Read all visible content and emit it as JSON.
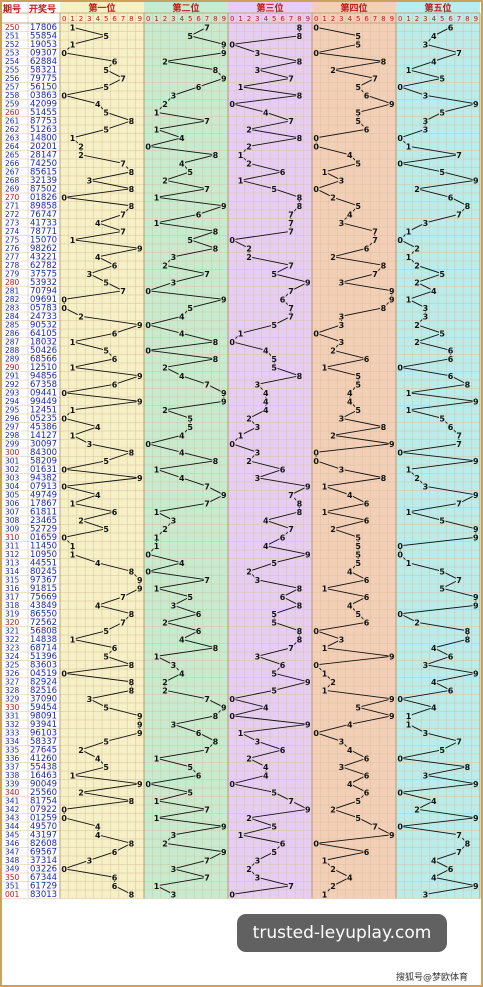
{
  "header": {
    "issue_label": "期号",
    "draw_label": "开奖号",
    "positions": [
      "第一位",
      "第二位",
      "第三位",
      "第四位",
      "第五位"
    ],
    "digit_labels": [
      "0",
      "1",
      "2",
      "3",
      "4",
      "5",
      "6",
      "7",
      "8",
      "9"
    ]
  },
  "colors": {
    "panels": [
      "#f6f0c6",
      "#c7ebcf",
      "#e6cdf3",
      "#f2cfb6",
      "#b9ecea"
    ],
    "issue_red": "#c0171c",
    "issue_blue": "#1a2aa8",
    "line": "#111111"
  },
  "chart_data": {
    "type": "line",
    "x_label": "期号",
    "series_names": [
      "第一位",
      "第二位",
      "第三位",
      "第四位",
      "第五位"
    ],
    "rows": [
      [
        "250",
        "17806"
      ],
      [
        "251",
        "55854"
      ],
      [
        "252",
        "19053"
      ],
      [
        "253",
        "09307"
      ],
      [
        "254",
        "62884"
      ],
      [
        "255",
        "58321"
      ],
      [
        "256",
        "79775"
      ],
      [
        "257",
        "56150"
      ],
      [
        "258",
        "03863"
      ],
      [
        "259",
        "42099"
      ],
      [
        "260",
        "51455"
      ],
      [
        "261",
        "87753"
      ],
      [
        "262",
        "51263"
      ],
      [
        "263",
        "14800"
      ],
      [
        "264",
        "20201"
      ],
      [
        "265",
        "28147"
      ],
      [
        "266",
        "74250"
      ],
      [
        "267",
        "85615"
      ],
      [
        "268",
        "32139"
      ],
      [
        "269",
        "87502"
      ],
      [
        "270",
        "01826"
      ],
      [
        "271",
        "89858"
      ],
      [
        "272",
        "76747"
      ],
      [
        "273",
        "41733"
      ],
      [
        "274",
        "78771"
      ],
      [
        "275",
        "15070"
      ],
      [
        "276",
        "98262"
      ],
      [
        "277",
        "43221"
      ],
      [
        "278",
        "62782"
      ],
      [
        "279",
        "37575"
      ],
      [
        "280",
        "53932"
      ],
      [
        "281",
        "70794"
      ],
      [
        "282",
        "09691"
      ],
      [
        "283",
        "05783"
      ],
      [
        "284",
        "24733"
      ],
      [
        "285",
        "90532"
      ],
      [
        "286",
        "64105"
      ],
      [
        "287",
        "18032"
      ],
      [
        "288",
        "50426"
      ],
      [
        "289",
        "68566"
      ],
      [
        "290",
        "12510"
      ],
      [
        "291",
        "94856"
      ],
      [
        "292",
        "67358"
      ],
      [
        "293",
        "09441"
      ],
      [
        "294",
        "99449"
      ],
      [
        "295",
        "12451"
      ],
      [
        "296",
        "05235"
      ],
      [
        "297",
        "45386"
      ],
      [
        "298",
        "14127"
      ],
      [
        "299",
        "30097"
      ],
      [
        "300",
        "84300"
      ],
      [
        "301",
        "58209"
      ],
      [
        "302",
        "01631"
      ],
      [
        "303",
        "94382"
      ],
      [
        "304",
        "07913"
      ],
      [
        "305",
        "49749"
      ],
      [
        "306",
        "17867"
      ],
      [
        "307",
        "61811"
      ],
      [
        "308",
        "23465"
      ],
      [
        "309",
        "52729"
      ],
      [
        "310",
        "01659"
      ],
      [
        "311",
        "11450"
      ],
      [
        "312",
        "10950"
      ],
      [
        "313",
        "44551"
      ],
      [
        "314",
        "80245"
      ],
      [
        "315",
        "97367"
      ],
      [
        "316",
        "91815"
      ],
      [
        "317",
        "75669"
      ],
      [
        "318",
        "43849"
      ],
      [
        "319",
        "86550"
      ],
      [
        "320",
        "72562"
      ],
      [
        "321",
        "56808"
      ],
      [
        "322",
        "14838"
      ],
      [
        "323",
        "68714"
      ],
      [
        "324",
        "51396"
      ],
      [
        "325",
        "83603"
      ],
      [
        "326",
        "04519"
      ],
      [
        "327",
        "82924"
      ],
      [
        "328",
        "82516"
      ],
      [
        "329",
        "37090"
      ],
      [
        "330",
        "59454"
      ],
      [
        "331",
        "98091"
      ],
      [
        "332",
        "93941"
      ],
      [
        "333",
        "96103"
      ],
      [
        "334",
        "58337"
      ],
      [
        "335",
        "27645"
      ],
      [
        "336",
        "41260"
      ],
      [
        "337",
        "55438"
      ],
      [
        "338",
        "16463"
      ],
      [
        "339",
        "90049"
      ],
      [
        "340",
        "25560"
      ],
      [
        "341",
        "81754"
      ],
      [
        "342",
        "07922"
      ],
      [
        "343",
        "01259"
      ],
      [
        "344",
        "49570"
      ],
      [
        "345",
        "43197"
      ],
      [
        "346",
        "82608"
      ],
      [
        "347",
        "69567"
      ],
      [
        "348",
        "37314"
      ],
      [
        "349",
        "03226"
      ],
      [
        "350",
        "67344"
      ],
      [
        "351",
        "61729"
      ],
      [
        "001",
        "83013"
      ]
    ]
  },
  "watermark": "trusted-leyuplay.com",
  "credit": "搜狐号@梦欧体育"
}
